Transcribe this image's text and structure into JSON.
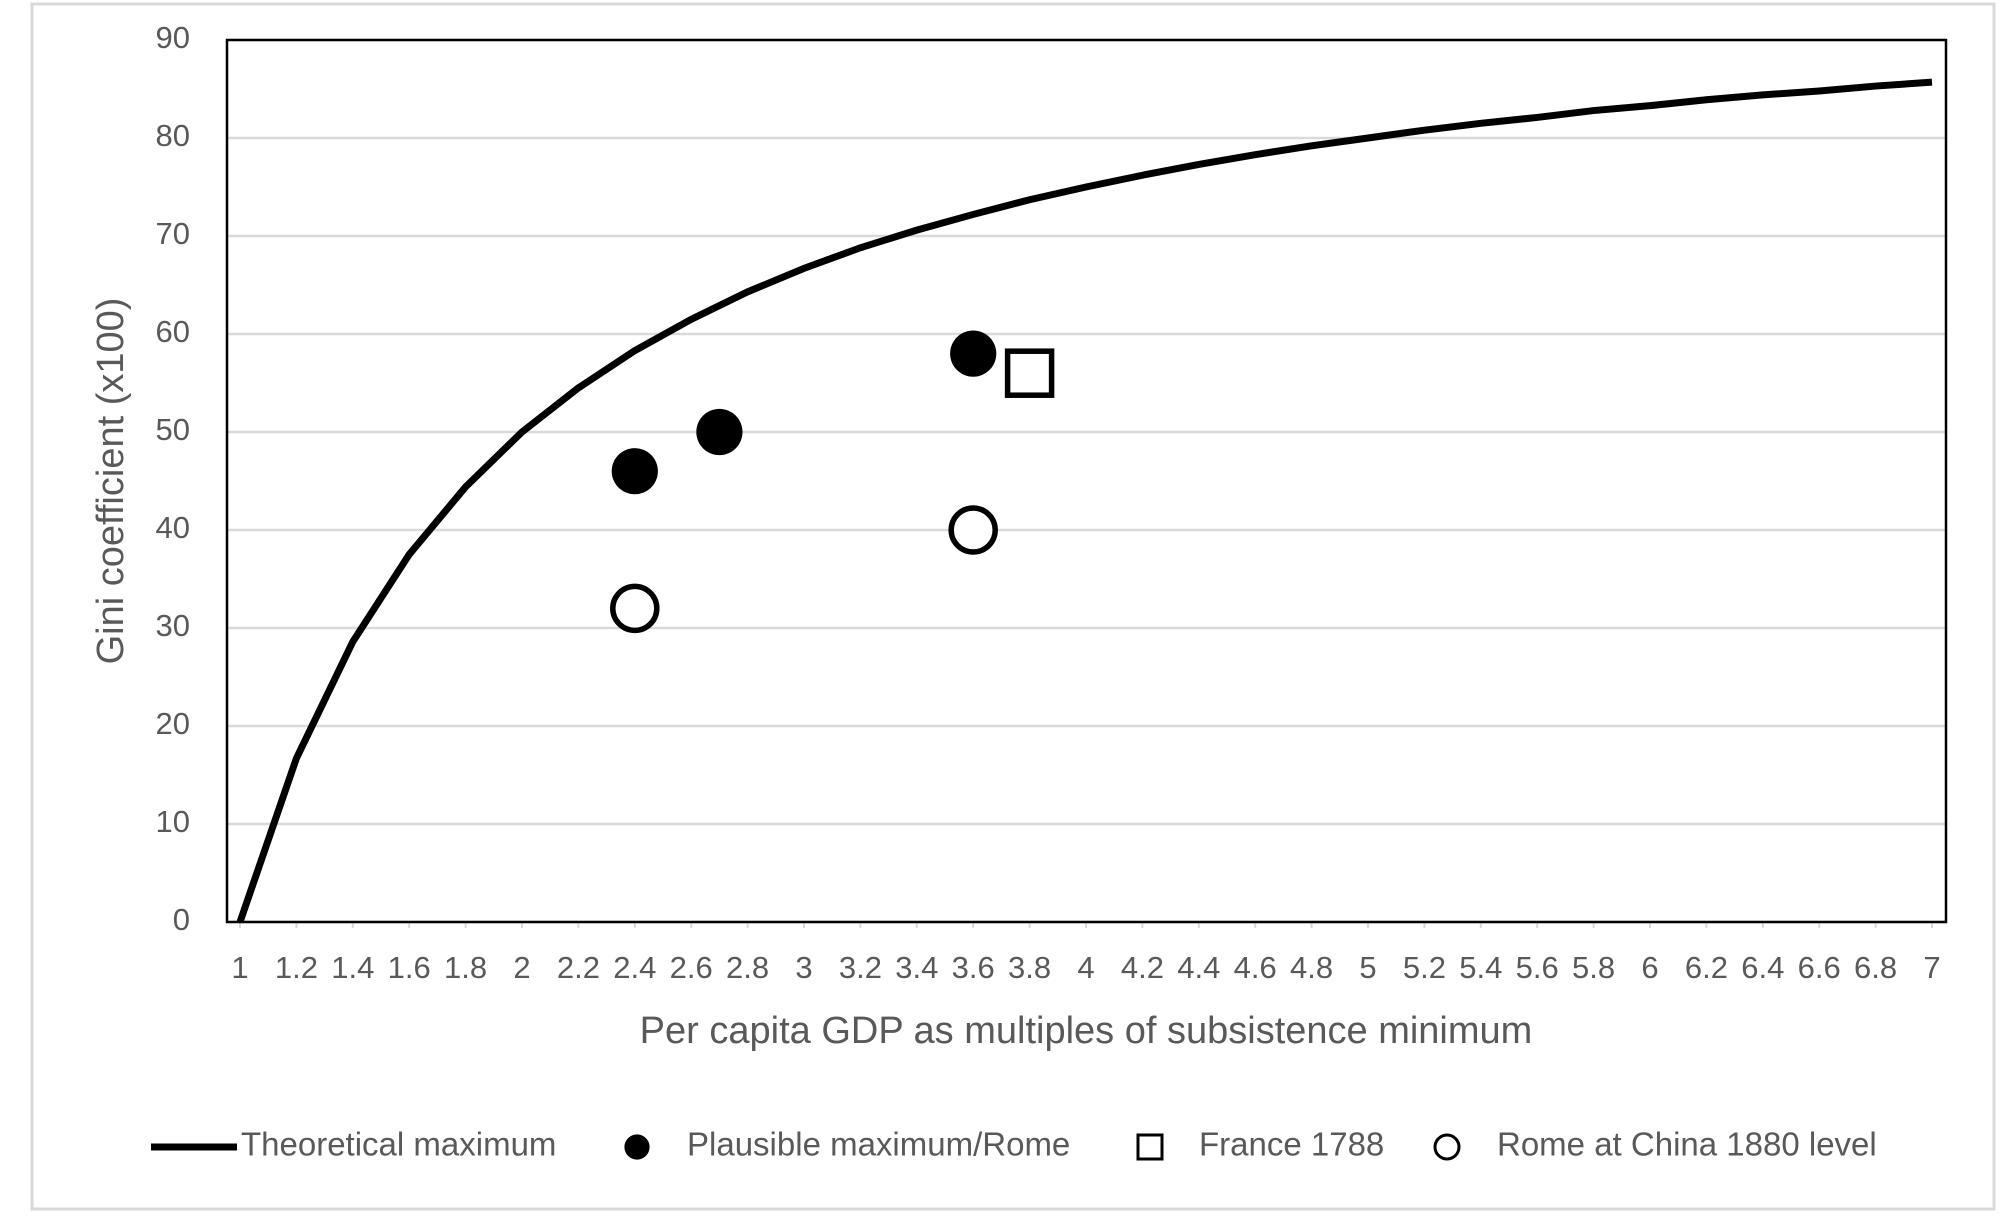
{
  "chart_data": {
    "type": "scatter",
    "xlabel": "Per capita GDP as multiples of subsistence minimum",
    "ylabel": "Gini coefficient (x100)",
    "xlim": [
      1,
      7
    ],
    "ylim": [
      0,
      90
    ],
    "xticks": [
      1,
      1.2,
      1.4,
      1.6,
      1.8,
      2,
      2.2,
      2.4,
      2.6,
      2.8,
      3,
      3.2,
      3.4,
      3.6,
      3.8,
      4,
      4.2,
      4.4,
      4.6,
      4.8,
      5,
      5.2,
      5.4,
      5.6,
      5.8,
      6,
      6.2,
      6.4,
      6.6,
      6.8,
      7
    ],
    "yticks": [
      0,
      10,
      20,
      30,
      40,
      50,
      60,
      70,
      80,
      90
    ],
    "grid": true,
    "legend": "bottom",
    "series": [
      {
        "name": "Theoretical maximum",
        "kind": "line",
        "color": "#000000",
        "x": [
          1,
          1.2,
          1.4,
          1.6,
          1.8,
          2,
          2.2,
          2.4,
          2.6,
          2.8,
          3,
          3.2,
          3.4,
          3.6,
          3.8,
          4,
          4.2,
          4.4,
          4.6,
          4.8,
          5,
          5.2,
          5.4,
          5.6,
          5.8,
          6,
          6.2,
          6.4,
          6.6,
          6.8,
          7
        ],
        "values": [
          0,
          16.7,
          28.6,
          37.5,
          44.4,
          50,
          54.5,
          58.3,
          61.5,
          64.3,
          66.7,
          68.8,
          70.6,
          72.2,
          73.7,
          75,
          76.2,
          77.3,
          78.3,
          79.2,
          80,
          80.8,
          81.5,
          82.1,
          82.8,
          83.3,
          83.9,
          84.4,
          84.8,
          85.3,
          85.7
        ]
      },
      {
        "name": "Plausible maximum/Rome",
        "kind": "marker",
        "marker": "filled-circle",
        "color": "#000000",
        "x": [
          2.4,
          2.7,
          3.6
        ],
        "values": [
          46,
          50,
          58
        ]
      },
      {
        "name": "France 1788",
        "kind": "marker",
        "marker": "square",
        "color": "#000000",
        "x": [
          3.8
        ],
        "values": [
          56
        ]
      },
      {
        "name": "Rome at China 1880 level",
        "kind": "marker",
        "marker": "open-circle",
        "color": "#000000",
        "x": [
          2.4,
          3.6
        ],
        "values": [
          32,
          40
        ]
      }
    ]
  }
}
